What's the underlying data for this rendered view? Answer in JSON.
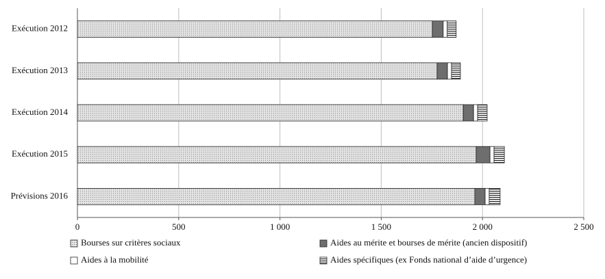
{
  "chart_data": {
    "type": "stacked-bar-horizontal",
    "categories": [
      "Exécution 2012",
      "Exécution 2013",
      "Exécution 2014",
      "Exécution 2015",
      "Prévisions 2016"
    ],
    "series": [
      {
        "name": "Bourses sur critères sociaux",
        "color": "#d4d4d4",
        "values": [
          1752,
          1776,
          1905,
          1969,
          1962
        ]
      },
      {
        "name": "Aides au mérite et bourses de mérite (ancien dispositif)",
        "color": "#6e6e6e",
        "values": [
          54,
          51,
          51,
          68,
          51
        ]
      },
      {
        "name": "Aides à la mobilité",
        "color": "#ffffff",
        "values": [
          20,
          20,
          20,
          20,
          20
        ]
      },
      {
        "name": "Aides spécifiques (ex Fonds national d’aide d’urgence)",
        "color": "#ffffff",
        "values": [
          44,
          44,
          47,
          51,
          54
        ]
      }
    ],
    "xlim": [
      0,
      2500
    ],
    "xticks": [
      0,
      500,
      {
        "value": 1000,
        "label": "1 000"
      },
      {
        "value": 1500,
        "label": "1 500"
      },
      {
        "value": 2000,
        "label": "2 000"
      },
      {
        "value": 2500,
        "label": "2 500"
      }
    ],
    "grid": true
  }
}
